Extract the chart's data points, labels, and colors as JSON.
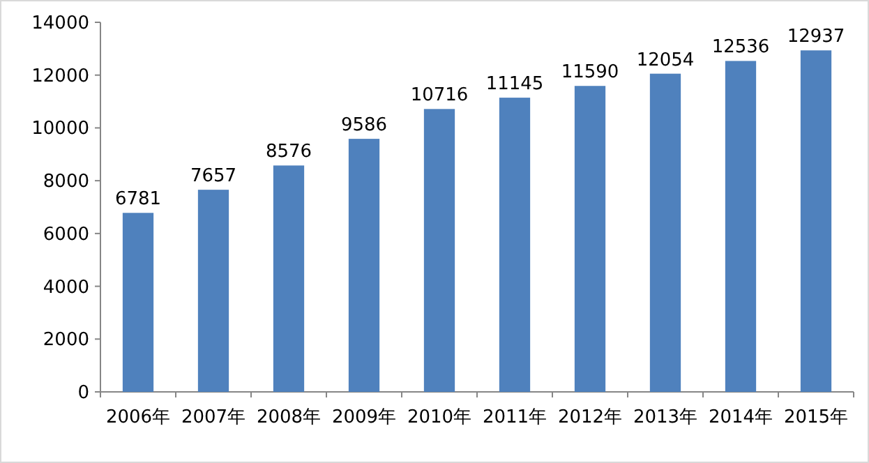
{
  "chart_data": {
    "type": "bar",
    "categories": [
      "2006年",
      "2007年",
      "2008年",
      "2009年",
      "2010年",
      "2011年",
      "2012年",
      "2013年",
      "2014年",
      "2015年"
    ],
    "values": [
      6781,
      7657,
      8576,
      9586,
      10716,
      11145,
      11590,
      12054,
      12536,
      12937
    ],
    "color": "#4f81bd",
    "ylim": [
      0,
      14000
    ],
    "yticks": [
      0,
      2000,
      4000,
      6000,
      8000,
      10000,
      12000,
      14000
    ],
    "data_labels": true
  }
}
